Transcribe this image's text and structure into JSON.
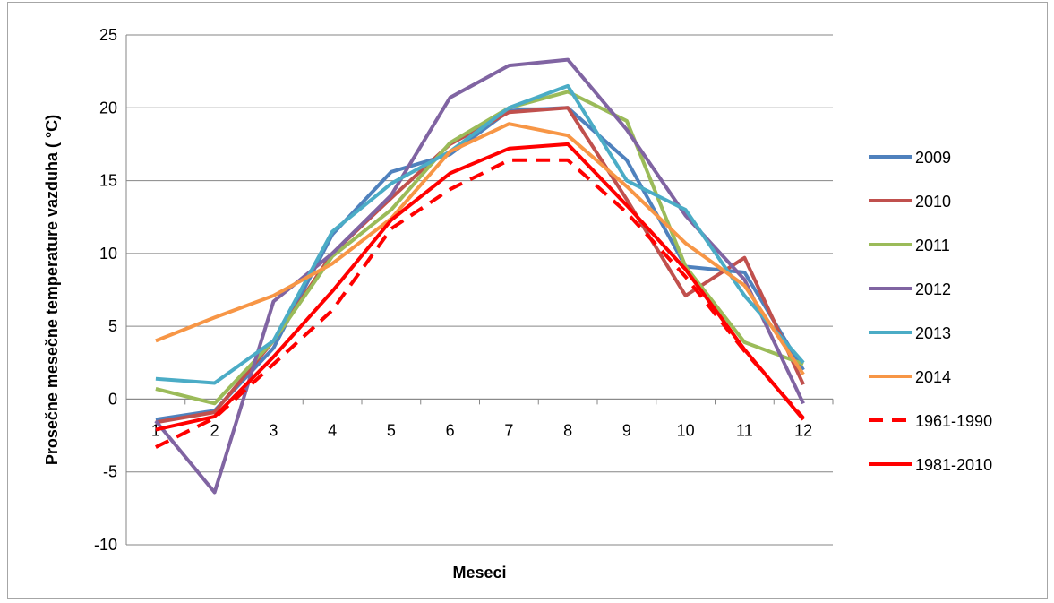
{
  "chart_data": {
    "type": "line",
    "title": "",
    "xlabel": "Meseci",
    "ylabel": "Prosečne mesečne temperature vazduha ( °C)",
    "ylim": [
      -10,
      25
    ],
    "yticks": [
      -10,
      -5,
      0,
      5,
      10,
      15,
      20,
      25
    ],
    "x": [
      1,
      2,
      3,
      4,
      5,
      6,
      7,
      8,
      9,
      10,
      11,
      12
    ],
    "grid": "horizontal",
    "legend": "right",
    "series": [
      {
        "name": "2009",
        "color": "#4f81bd",
        "dashed": false,
        "values": [
          -1.4,
          -0.8,
          3.5,
          11.3,
          15.6,
          16.8,
          19.8,
          20.0,
          16.4,
          9.1,
          8.7,
          2.0
        ]
      },
      {
        "name": "2010",
        "color": "#c0504d",
        "dashed": false,
        "values": [
          -1.6,
          -0.9,
          4.0,
          10.0,
          13.8,
          17.5,
          19.7,
          20.0,
          13.7,
          7.1,
          9.7,
          1.0
        ]
      },
      {
        "name": "2011",
        "color": "#9bbb59",
        "dashed": false,
        "values": [
          0.7,
          -0.3,
          4.0,
          9.8,
          13.0,
          17.6,
          20.0,
          21.1,
          19.1,
          9.1,
          3.9,
          2.4
        ]
      },
      {
        "name": "2012",
        "color": "#8064a2",
        "dashed": false,
        "values": [
          -1.5,
          -6.4,
          6.7,
          10.0,
          14.0,
          20.7,
          22.9,
          23.3,
          18.5,
          12.6,
          8.2,
          -0.3
        ]
      },
      {
        "name": "2013",
        "color": "#4bacc6",
        "dashed": false,
        "values": [
          1.4,
          1.1,
          4.0,
          11.5,
          14.8,
          17.0,
          20.0,
          21.5,
          15.0,
          13.0,
          7.1,
          2.5
        ]
      },
      {
        "name": "2014",
        "color": "#f79646",
        "dashed": false,
        "values": [
          4.0,
          5.6,
          7.1,
          9.3,
          12.4,
          17.0,
          18.9,
          18.1,
          14.6,
          10.7,
          7.8,
          1.7
        ]
      },
      {
        "name": "1961-1990",
        "color": "#ff0000",
        "dashed": true,
        "values": [
          -3.3,
          -1.3,
          2.4,
          6.1,
          11.7,
          14.4,
          16.4,
          16.4,
          12.8,
          8.4,
          3.3,
          -1.3
        ]
      },
      {
        "name": "1981-2010",
        "color": "#ff0000",
        "dashed": false,
        "values": [
          -2.1,
          -1.2,
          2.9,
          7.4,
          12.3,
          15.5,
          17.2,
          17.5,
          13.3,
          8.9,
          3.4,
          -1.4
        ]
      }
    ]
  }
}
